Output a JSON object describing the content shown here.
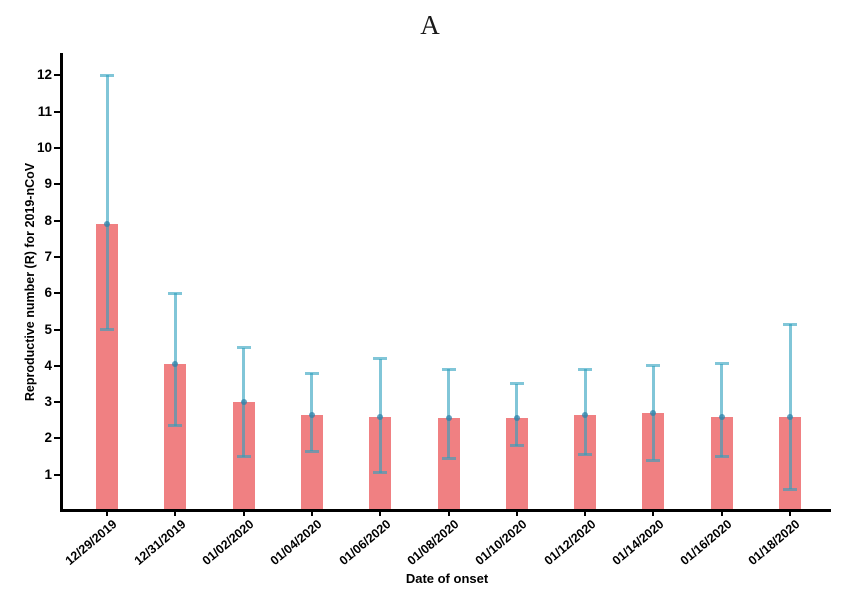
{
  "chart_data": {
    "type": "bar",
    "title": "A",
    "xlabel": "Date of onset",
    "ylabel": "Reproductive number (R) for 2019-nCoV",
    "categories": [
      "12/29/2019",
      "12/31/2019",
      "01/02/2020",
      "01/04/2020",
      "01/06/2020",
      "01/08/2020",
      "01/10/2020",
      "01/12/2020",
      "01/14/2020",
      "01/16/2020",
      "01/18/2020"
    ],
    "series": [
      {
        "name": "Reproductive number (R) point estimate",
        "values": [
          7.9,
          4.05,
          3.0,
          2.65,
          2.6,
          2.55,
          2.55,
          2.65,
          2.7,
          2.6,
          2.6
        ],
        "ci_low": [
          5.0,
          2.35,
          1.5,
          1.65,
          1.05,
          1.45,
          1.8,
          1.55,
          1.4,
          1.5,
          0.6
        ],
        "ci_high": [
          12.0,
          6.0,
          4.5,
          3.8,
          4.2,
          3.9,
          3.5,
          3.9,
          4.0,
          4.05,
          5.15
        ]
      }
    ],
    "y_ticks": [
      1,
      2,
      3,
      4,
      5,
      6,
      7,
      8,
      9,
      10,
      11,
      12
    ],
    "ylim": [
      0,
      12.6
    ],
    "grid": false,
    "legend": "none",
    "error_bar_style": "capped whiskers with point marker at bar top",
    "colors": {
      "bar_fill": "#F08082",
      "error_line": "#2DA0BE",
      "error_line_opacity": 0.6,
      "point_marker": "#2D82AA",
      "point_marker_opacity": 0.75,
      "axis": "#000000",
      "text": "#000000",
      "background": "#ffffff"
    }
  }
}
